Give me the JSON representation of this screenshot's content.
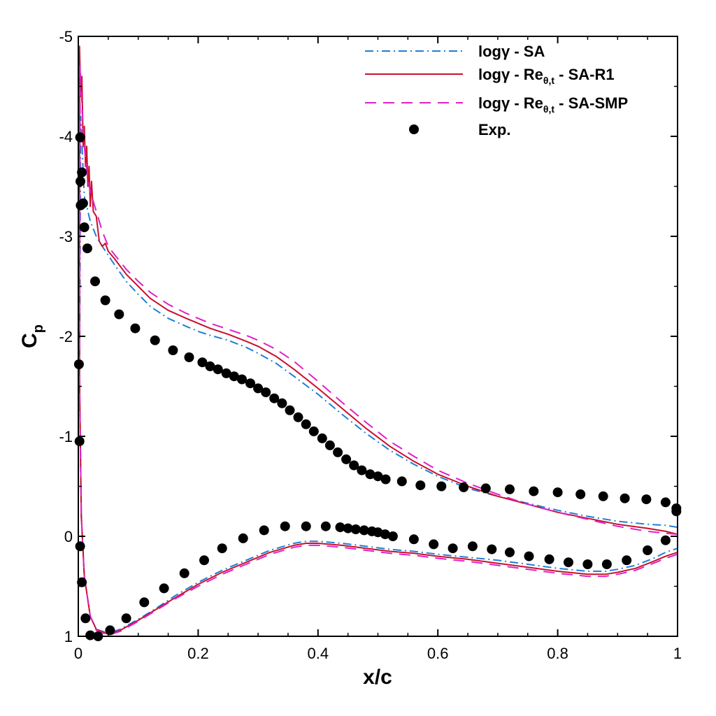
{
  "chart_data": {
    "type": "line",
    "title": "",
    "xlabel": "x/c",
    "ylabel": "C",
    "ylabel_sub": "p",
    "xlim": [
      0,
      1
    ],
    "ylim": [
      1,
      -5
    ],
    "y_inverted": true,
    "grid": false,
    "legend_position": "top-right",
    "xticks": [
      0,
      0.2,
      0.4,
      0.6,
      0.8,
      1
    ],
    "xtick_labels": [
      "0",
      "0.2",
      "0.4",
      "0.6",
      "0.8",
      "1"
    ],
    "yticks": [
      -5,
      -4,
      -3,
      -2,
      -1,
      0,
      1
    ],
    "ytick_labels": [
      "-5",
      "-4",
      "-3",
      "-2",
      "-1",
      "0",
      "1"
    ],
    "legend": [
      {
        "main": "logγ - SA",
        "sub": "",
        "rest": ""
      },
      {
        "main": "logγ - Re",
        "sub": "θ,t",
        "rest": " - SA-R1"
      },
      {
        "main": "logγ - Re",
        "sub": "θ,t",
        "rest": " - SA-SMP"
      },
      {
        "main": "Exp.",
        "sub": "",
        "rest": ""
      }
    ],
    "series": [
      {
        "name": "logγ - SA",
        "style": "dashdot",
        "color": "#1f7fd6",
        "upper": [
          [
            0.004,
            -4.2
          ],
          [
            0.01,
            -3.4
          ],
          [
            0.02,
            -3.15
          ],
          [
            0.03,
            -3.0
          ],
          [
            0.04,
            -2.9
          ],
          [
            0.06,
            -2.72
          ],
          [
            0.08,
            -2.55
          ],
          [
            0.1,
            -2.42
          ],
          [
            0.12,
            -2.3
          ],
          [
            0.15,
            -2.18
          ],
          [
            0.18,
            -2.1
          ],
          [
            0.2,
            -2.05
          ],
          [
            0.22,
            -2.01
          ],
          [
            0.25,
            -1.96
          ],
          [
            0.28,
            -1.89
          ],
          [
            0.3,
            -1.83
          ],
          [
            0.33,
            -1.73
          ],
          [
            0.36,
            -1.6
          ],
          [
            0.4,
            -1.42
          ],
          [
            0.44,
            -1.22
          ],
          [
            0.48,
            -1.03
          ],
          [
            0.52,
            -0.86
          ],
          [
            0.56,
            -0.72
          ],
          [
            0.6,
            -0.6
          ],
          [
            0.65,
            -0.48
          ],
          [
            0.7,
            -0.4
          ],
          [
            0.75,
            -0.33
          ],
          [
            0.8,
            -0.26
          ],
          [
            0.85,
            -0.2
          ],
          [
            0.9,
            -0.15
          ],
          [
            0.95,
            -0.12
          ],
          [
            0.98,
            -0.11
          ],
          [
            1.0,
            -0.09
          ]
        ],
        "lower": [
          [
            0.002,
            -1.5
          ],
          [
            0.005,
            -0.2
          ],
          [
            0.01,
            0.4
          ],
          [
            0.02,
            0.8
          ],
          [
            0.03,
            0.93
          ],
          [
            0.05,
            0.97
          ],
          [
            0.07,
            0.93
          ],
          [
            0.1,
            0.83
          ],
          [
            0.13,
            0.72
          ],
          [
            0.16,
            0.6
          ],
          [
            0.2,
            0.46
          ],
          [
            0.24,
            0.34
          ],
          [
            0.28,
            0.24
          ],
          [
            0.32,
            0.14
          ],
          [
            0.36,
            0.07
          ],
          [
            0.38,
            0.05
          ],
          [
            0.4,
            0.05
          ],
          [
            0.44,
            0.07
          ],
          [
            0.48,
            0.1
          ],
          [
            0.52,
            0.13
          ],
          [
            0.56,
            0.15
          ],
          [
            0.6,
            0.18
          ],
          [
            0.65,
            0.21
          ],
          [
            0.7,
            0.24
          ],
          [
            0.75,
            0.28
          ],
          [
            0.8,
            0.32
          ],
          [
            0.85,
            0.35
          ],
          [
            0.88,
            0.35
          ],
          [
            0.9,
            0.33
          ],
          [
            0.93,
            0.29
          ],
          [
            0.96,
            0.22
          ],
          [
            0.98,
            0.16
          ],
          [
            1.0,
            0.12
          ]
        ]
      },
      {
        "name": "logγ - Reθ,t - SA-R1",
        "style": "solid",
        "color": "#c8102e",
        "upper": [
          [
            0.002,
            -4.9
          ],
          [
            0.004,
            -4.4
          ],
          [
            0.006,
            -4.6
          ],
          [
            0.008,
            -3.9
          ],
          [
            0.01,
            -4.1
          ],
          [
            0.012,
            -3.7
          ],
          [
            0.014,
            -3.9
          ],
          [
            0.016,
            -3.5
          ],
          [
            0.018,
            -3.7
          ],
          [
            0.02,
            -3.3
          ],
          [
            0.022,
            -3.55
          ],
          [
            0.025,
            -3.25
          ],
          [
            0.03,
            -3.2
          ],
          [
            0.035,
            -2.95
          ],
          [
            0.04,
            -2.9
          ],
          [
            0.045,
            -2.93
          ],
          [
            0.05,
            -2.85
          ],
          [
            0.06,
            -2.78
          ],
          [
            0.08,
            -2.62
          ],
          [
            0.1,
            -2.5
          ],
          [
            0.12,
            -2.38
          ],
          [
            0.15,
            -2.26
          ],
          [
            0.18,
            -2.18
          ],
          [
            0.2,
            -2.13
          ],
          [
            0.22,
            -2.08
          ],
          [
            0.25,
            -2.02
          ],
          [
            0.28,
            -1.95
          ],
          [
            0.3,
            -1.9
          ],
          [
            0.33,
            -1.8
          ],
          [
            0.36,
            -1.67
          ],
          [
            0.4,
            -1.48
          ],
          [
            0.44,
            -1.28
          ],
          [
            0.48,
            -1.08
          ],
          [
            0.52,
            -0.9
          ],
          [
            0.56,
            -0.75
          ],
          [
            0.6,
            -0.62
          ],
          [
            0.65,
            -0.5
          ],
          [
            0.7,
            -0.4
          ],
          [
            0.75,
            -0.32
          ],
          [
            0.8,
            -0.24
          ],
          [
            0.85,
            -0.18
          ],
          [
            0.9,
            -0.12
          ],
          [
            0.95,
            -0.08
          ],
          [
            0.98,
            -0.05
          ],
          [
            1.0,
            -0.02
          ]
        ],
        "lower": [
          [
            0.002,
            -1.6
          ],
          [
            0.005,
            -0.2
          ],
          [
            0.01,
            0.4
          ],
          [
            0.02,
            0.8
          ],
          [
            0.03,
            0.93
          ],
          [
            0.05,
            0.98
          ],
          [
            0.07,
            0.94
          ],
          [
            0.1,
            0.84
          ],
          [
            0.13,
            0.73
          ],
          [
            0.16,
            0.62
          ],
          [
            0.2,
            0.48
          ],
          [
            0.24,
            0.36
          ],
          [
            0.28,
            0.26
          ],
          [
            0.32,
            0.16
          ],
          [
            0.36,
            0.09
          ],
          [
            0.38,
            0.07
          ],
          [
            0.4,
            0.07
          ],
          [
            0.44,
            0.09
          ],
          [
            0.48,
            0.12
          ],
          [
            0.52,
            0.15
          ],
          [
            0.56,
            0.17
          ],
          [
            0.6,
            0.2
          ],
          [
            0.65,
            0.23
          ],
          [
            0.7,
            0.27
          ],
          [
            0.75,
            0.31
          ],
          [
            0.8,
            0.35
          ],
          [
            0.85,
            0.38
          ],
          [
            0.88,
            0.38
          ],
          [
            0.9,
            0.36
          ],
          [
            0.93,
            0.32
          ],
          [
            0.96,
            0.25
          ],
          [
            0.98,
            0.2
          ],
          [
            1.0,
            0.16
          ]
        ]
      },
      {
        "name": "logγ - Reθ,t - SA-SMP",
        "style": "dashed",
        "color": "#e020c8",
        "upper": [
          [
            0.003,
            -4.7
          ],
          [
            0.006,
            -4.3
          ],
          [
            0.01,
            -3.9
          ],
          [
            0.015,
            -3.6
          ],
          [
            0.02,
            -3.45
          ],
          [
            0.03,
            -3.25
          ],
          [
            0.04,
            -3.05
          ],
          [
            0.05,
            -2.9
          ],
          [
            0.06,
            -2.82
          ],
          [
            0.08,
            -2.67
          ],
          [
            0.1,
            -2.55
          ],
          [
            0.12,
            -2.44
          ],
          [
            0.15,
            -2.32
          ],
          [
            0.18,
            -2.23
          ],
          [
            0.2,
            -2.18
          ],
          [
            0.22,
            -2.13
          ],
          [
            0.25,
            -2.07
          ],
          [
            0.28,
            -2.01
          ],
          [
            0.3,
            -1.96
          ],
          [
            0.33,
            -1.87
          ],
          [
            0.36,
            -1.75
          ],
          [
            0.4,
            -1.55
          ],
          [
            0.44,
            -1.34
          ],
          [
            0.48,
            -1.14
          ],
          [
            0.52,
            -0.95
          ],
          [
            0.56,
            -0.8
          ],
          [
            0.6,
            -0.66
          ],
          [
            0.65,
            -0.53
          ],
          [
            0.7,
            -0.42
          ],
          [
            0.75,
            -0.32
          ],
          [
            0.8,
            -0.24
          ],
          [
            0.85,
            -0.17
          ],
          [
            0.9,
            -0.1
          ],
          [
            0.95,
            -0.05
          ],
          [
            0.98,
            -0.03
          ],
          [
            1.0,
            -0.02
          ]
        ],
        "lower": [
          [
            0.002,
            -1.6
          ],
          [
            0.005,
            -0.2
          ],
          [
            0.01,
            0.4
          ],
          [
            0.02,
            0.8
          ],
          [
            0.03,
            0.94
          ],
          [
            0.05,
            0.99
          ],
          [
            0.07,
            0.95
          ],
          [
            0.1,
            0.85
          ],
          [
            0.13,
            0.74
          ],
          [
            0.16,
            0.63
          ],
          [
            0.2,
            0.5
          ],
          [
            0.24,
            0.38
          ],
          [
            0.28,
            0.28
          ],
          [
            0.32,
            0.18
          ],
          [
            0.36,
            0.11
          ],
          [
            0.38,
            0.09
          ],
          [
            0.4,
            0.09
          ],
          [
            0.44,
            0.11
          ],
          [
            0.48,
            0.14
          ],
          [
            0.52,
            0.17
          ],
          [
            0.56,
            0.19
          ],
          [
            0.6,
            0.22
          ],
          [
            0.65,
            0.25
          ],
          [
            0.7,
            0.29
          ],
          [
            0.75,
            0.33
          ],
          [
            0.8,
            0.37
          ],
          [
            0.85,
            0.4
          ],
          [
            0.88,
            0.4
          ],
          [
            0.9,
            0.38
          ],
          [
            0.93,
            0.34
          ],
          [
            0.96,
            0.27
          ],
          [
            0.98,
            0.22
          ],
          [
            1.0,
            0.18
          ]
        ]
      }
    ],
    "exp_color": "#000000",
    "exp_points": [
      [
        0.001,
        -1.72
      ],
      [
        0.002,
        -0.95
      ],
      [
        0.003,
        -3.99
      ],
      [
        0.0035,
        -3.55
      ],
      [
        0.004,
        -3.31
      ],
      [
        0.006,
        -3.64
      ],
      [
        0.008,
        -3.33
      ],
      [
        0.01,
        -3.09
      ],
      [
        0.015,
        -2.88
      ],
      [
        0.028,
        -2.55
      ],
      [
        0.045,
        -2.36
      ],
      [
        0.068,
        -2.22
      ],
      [
        0.095,
        -2.08
      ],
      [
        0.128,
        -1.96
      ],
      [
        0.158,
        -1.86
      ],
      [
        0.185,
        -1.79
      ],
      [
        0.207,
        -1.74
      ],
      [
        0.22,
        -1.7
      ],
      [
        0.233,
        -1.67
      ],
      [
        0.247,
        -1.63
      ],
      [
        0.26,
        -1.6
      ],
      [
        0.273,
        -1.57
      ],
      [
        0.287,
        -1.53
      ],
      [
        0.3,
        -1.48
      ],
      [
        0.313,
        -1.44
      ],
      [
        0.327,
        -1.38
      ],
      [
        0.34,
        -1.33
      ],
      [
        0.353,
        -1.26
      ],
      [
        0.367,
        -1.19
      ],
      [
        0.38,
        -1.12
      ],
      [
        0.393,
        -1.05
      ],
      [
        0.407,
        -0.98
      ],
      [
        0.42,
        -0.91
      ],
      [
        0.433,
        -0.84
      ],
      [
        0.447,
        -0.77
      ],
      [
        0.46,
        -0.71
      ],
      [
        0.473,
        -0.66
      ],
      [
        0.487,
        -0.62
      ],
      [
        0.5,
        -0.6
      ],
      [
        0.513,
        -0.57
      ],
      [
        0.54,
        -0.55
      ],
      [
        0.571,
        -0.51
      ],
      [
        0.606,
        -0.5
      ],
      [
        0.643,
        -0.49
      ],
      [
        0.68,
        -0.48
      ],
      [
        0.72,
        -0.47
      ],
      [
        0.76,
        -0.45
      ],
      [
        0.8,
        -0.44
      ],
      [
        0.838,
        -0.42
      ],
      [
        0.876,
        -0.4
      ],
      [
        0.912,
        -0.38
      ],
      [
        0.948,
        -0.37
      ],
      [
        0.98,
        -0.34
      ],
      [
        0.998,
        -0.28
      ],
      [
        0.998,
        -0.25
      ],
      [
        0.98,
        0.04
      ],
      [
        0.95,
        0.14
      ],
      [
        0.915,
        0.24
      ],
      [
        0.882,
        0.28
      ],
      [
        0.85,
        0.28
      ],
      [
        0.818,
        0.26
      ],
      [
        0.786,
        0.23
      ],
      [
        0.752,
        0.2
      ],
      [
        0.72,
        0.16
      ],
      [
        0.69,
        0.13
      ],
      [
        0.658,
        0.1
      ],
      [
        0.625,
        0.12
      ],
      [
        0.593,
        0.08
      ],
      [
        0.56,
        0.03
      ],
      [
        0.525,
        0.0
      ],
      [
        0.512,
        -0.02
      ],
      [
        0.5,
        -0.04
      ],
      [
        0.49,
        -0.05
      ],
      [
        0.477,
        -0.06
      ],
      [
        0.463,
        -0.07
      ],
      [
        0.45,
        -0.08
      ],
      [
        0.437,
        -0.09
      ],
      [
        0.413,
        -0.1
      ],
      [
        0.38,
        -0.1
      ],
      [
        0.345,
        -0.1
      ],
      [
        0.31,
        -0.06
      ],
      [
        0.275,
        0.02
      ],
      [
        0.24,
        0.12
      ],
      [
        0.21,
        0.24
      ],
      [
        0.177,
        0.37
      ],
      [
        0.143,
        0.52
      ],
      [
        0.11,
        0.66
      ],
      [
        0.08,
        0.82
      ],
      [
        0.053,
        0.94
      ],
      [
        0.033,
        1.0
      ],
      [
        0.02,
        0.99
      ],
      [
        0.012,
        0.82
      ],
      [
        0.006,
        0.46
      ],
      [
        0.003,
        0.1
      ]
    ]
  }
}
